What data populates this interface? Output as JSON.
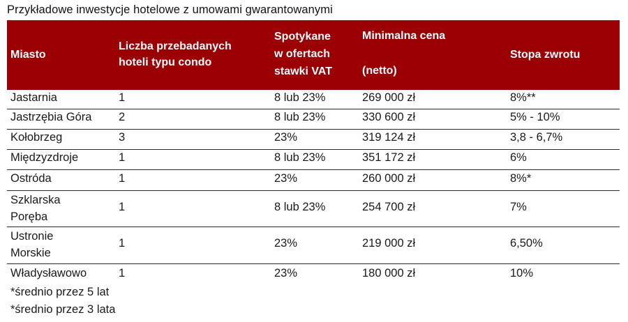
{
  "title": "Przykładowe inwestycje hotelowe z umowami gwarantowanymi",
  "colors": {
    "header_bg": "#9b0005",
    "header_text": "#ffffff",
    "row_border": "#2a2a2a"
  },
  "table": {
    "headers": [
      {
        "lines": [
          "Miasto"
        ]
      },
      {
        "lines": [
          "Liczba przebadanych",
          "hoteli typu condo"
        ]
      },
      {
        "lines": [
          "Spotykane",
          "w ofertach",
          "stawki VAT"
        ]
      },
      {
        "lines": [
          "Minimalna cena",
          "(netto)"
        ]
      },
      {
        "lines": [
          "Stopa zwrotu"
        ]
      }
    ],
    "rows": [
      {
        "city": [
          "Jastarnia"
        ],
        "count": "1",
        "vat": "8 lub 23%",
        "price": "269 000 zł",
        "rate": "8%**"
      },
      {
        "city": [
          "Jastrzębia Góra"
        ],
        "count": "2",
        "vat": "8 lub 23%",
        "price": "330 600 zł",
        "rate": "5% - 10%"
      },
      {
        "city": [
          "Kołobrzeg"
        ],
        "count": "3",
        "vat": "23%",
        "price": "319 124 zł",
        "rate": "3,8 - 6,7%"
      },
      {
        "city": [
          "Międzyzdroje"
        ],
        "count": "1",
        "vat": "8 lub 23%",
        "price": "351 172 zł",
        "rate": "6%"
      },
      {
        "city": [
          "Ostróda"
        ],
        "count": "1",
        "vat": "23%",
        "price": "260 000 zł",
        "rate": "8%*"
      },
      {
        "city": [
          "Szklarska",
          "Poręba"
        ],
        "count": "1",
        "vat": "8 lub 23%",
        "price": "254 700 zł",
        "rate": "7%"
      },
      {
        "city": [
          "Ustronie",
          "Morskie"
        ],
        "count": "1",
        "vat": "23%",
        "price": "219 000 zł",
        "rate": "6,50%"
      },
      {
        "city": [
          "Władysławowo"
        ],
        "count": "1",
        "vat": "23%",
        "price": "180 000 zł",
        "rate": "10%"
      }
    ]
  },
  "notes": [
    "*średnio przez 5 lat",
    "*średnio przez 3 lata"
  ]
}
